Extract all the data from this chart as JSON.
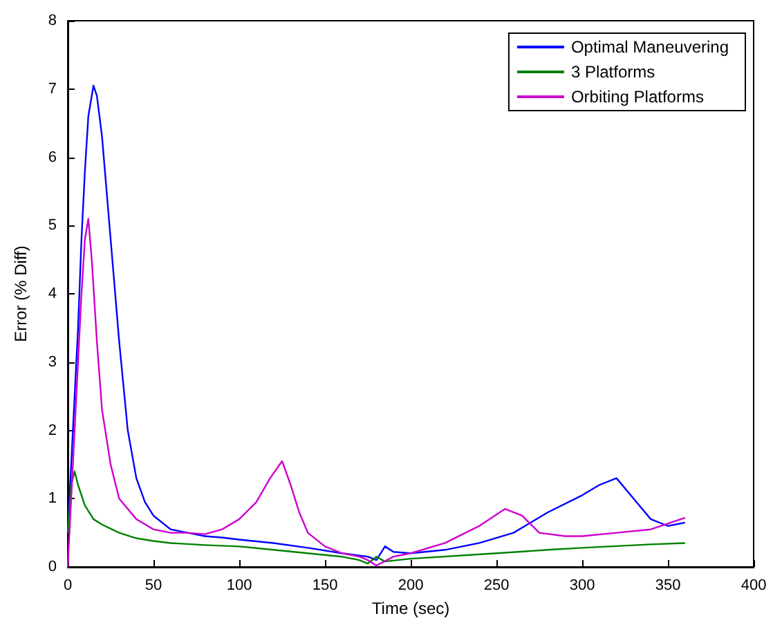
{
  "chart_data": {
    "type": "line",
    "xlabel": "Time (sec)",
    "ylabel": "Error (% Diff)",
    "xlim": [
      0,
      400
    ],
    "xticks": [
      0,
      50,
      100,
      150,
      200,
      250,
      300,
      350,
      400
    ],
    "ylim": [
      0,
      8
    ],
    "yticks": [
      0,
      1,
      2,
      3,
      4,
      5,
      6,
      7,
      8
    ],
    "grid": false,
    "legend": "top right",
    "marker": "none",
    "line_style": "solid",
    "series": [
      {
        "name": "Optimal Maneuvering",
        "color": "#0000ff",
        "x": [
          0,
          2,
          4,
          6,
          8,
          10,
          12,
          15,
          17,
          20,
          25,
          30,
          35,
          40,
          45,
          50,
          60,
          70,
          80,
          90,
          100,
          120,
          140,
          160,
          175,
          180,
          185,
          190,
          200,
          220,
          240,
          260,
          280,
          300,
          310,
          320,
          330,
          340,
          350,
          360
        ],
        "values": [
          0.5,
          1.5,
          2.5,
          3.5,
          4.8,
          5.8,
          6.6,
          7.05,
          6.9,
          6.3,
          4.8,
          3.3,
          2.0,
          1.3,
          0.95,
          0.75,
          0.55,
          0.5,
          0.45,
          0.43,
          0.4,
          0.35,
          0.28,
          0.2,
          0.15,
          0.1,
          0.3,
          0.22,
          0.2,
          0.25,
          0.35,
          0.5,
          0.8,
          1.05,
          1.2,
          1.3,
          1.0,
          0.7,
          0.6,
          0.65
        ]
      },
      {
        "name": "3 Platforms",
        "color": "#008000",
        "x": [
          0,
          2,
          4,
          6,
          10,
          15,
          20,
          30,
          40,
          50,
          60,
          80,
          100,
          120,
          140,
          160,
          170,
          175,
          180,
          185,
          200,
          250,
          280,
          300,
          340,
          360
        ],
        "values": [
          0.5,
          1.2,
          1.4,
          1.2,
          0.9,
          0.7,
          0.62,
          0.5,
          0.42,
          0.38,
          0.35,
          0.32,
          0.3,
          0.25,
          0.2,
          0.15,
          0.1,
          0.05,
          0.15,
          0.08,
          0.12,
          0.2,
          0.25,
          0.28,
          0.33,
          0.35
        ]
      },
      {
        "name": "Orbiting Platforms",
        "color": "#cc00cc",
        "x": [
          0,
          2,
          4,
          6,
          8,
          10,
          12,
          14,
          17,
          20,
          25,
          30,
          40,
          50,
          60,
          70,
          80,
          90,
          100,
          110,
          118,
          125,
          130,
          135,
          140,
          150,
          160,
          170,
          175,
          180,
          190,
          200,
          220,
          240,
          255,
          265,
          275,
          290,
          300,
          320,
          340,
          360
        ],
        "values": [
          0,
          1.0,
          2.0,
          3.0,
          4.0,
          4.8,
          5.1,
          4.5,
          3.3,
          2.3,
          1.5,
          1.0,
          0.7,
          0.55,
          0.5,
          0.5,
          0.48,
          0.55,
          0.7,
          0.95,
          1.3,
          1.55,
          1.2,
          0.8,
          0.5,
          0.3,
          0.2,
          0.15,
          0.1,
          0.02,
          0.15,
          0.2,
          0.35,
          0.6,
          0.85,
          0.75,
          0.5,
          0.45,
          0.45,
          0.5,
          0.55,
          0.72
        ]
      }
    ]
  }
}
